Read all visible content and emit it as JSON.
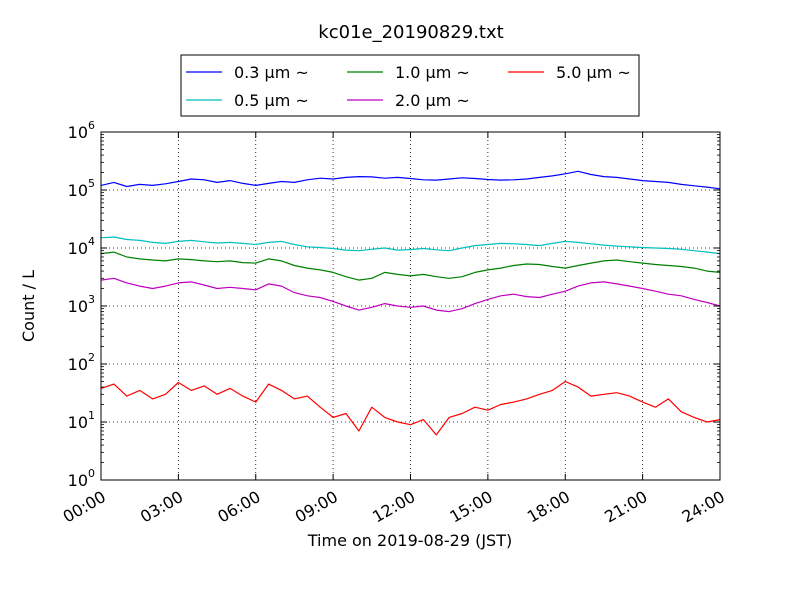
{
  "chart_data": {
    "type": "line",
    "title": "kc01e_20190829.txt",
    "xlabel": "Time on 2019-08-29 (JST)",
    "ylabel": "Count / L",
    "yscale": "log",
    "ylim": [
      1,
      1000000
    ],
    "xlim": [
      "00:00",
      "24:00"
    ],
    "x_ticks": [
      "00:00",
      "03:00",
      "06:00",
      "09:00",
      "12:00",
      "15:00",
      "18:00",
      "21:00",
      "24:00"
    ],
    "y_ticks": [
      {
        "base": "10",
        "exp": "0"
      },
      {
        "base": "10",
        "exp": "1"
      },
      {
        "base": "10",
        "exp": "2"
      },
      {
        "base": "10",
        "exp": "3"
      },
      {
        "base": "10",
        "exp": "4"
      },
      {
        "base": "10",
        "exp": "5"
      },
      {
        "base": "10",
        "exp": "6"
      }
    ],
    "grid": true,
    "legend_position": "top-center",
    "x_hours": [
      0,
      0.5,
      1,
      1.5,
      2,
      2.5,
      3,
      3.5,
      4,
      4.5,
      5,
      5.5,
      6,
      6.5,
      7,
      7.5,
      8,
      8.5,
      9,
      9.5,
      10,
      10.5,
      11,
      11.5,
      12,
      12.5,
      13,
      13.5,
      14,
      14.5,
      15,
      15.5,
      16,
      16.5,
      17,
      17.5,
      18,
      18.5,
      19,
      19.5,
      20,
      20.5,
      21,
      21.5,
      22,
      22.5,
      23,
      23.5,
      24
    ],
    "series": [
      {
        "name": "0.3 μm ~",
        "color": "#0000ff",
        "values": [
          120000,
          135000,
          115000,
          125000,
          120000,
          128000,
          140000,
          155000,
          150000,
          135000,
          145000,
          130000,
          120000,
          130000,
          140000,
          135000,
          150000,
          160000,
          155000,
          165000,
          170000,
          168000,
          160000,
          165000,
          158000,
          150000,
          148000,
          155000,
          162000,
          158000,
          152000,
          148000,
          150000,
          155000,
          165000,
          175000,
          190000,
          210000,
          185000,
          170000,
          165000,
          155000,
          145000,
          140000,
          135000,
          125000,
          118000,
          112000,
          105000
        ]
      },
      {
        "name": "0.5 μm ~",
        "color": "#00bfbf",
        "values": [
          15000,
          15500,
          14000,
          13500,
          12500,
          12000,
          13000,
          13500,
          12800,
          12200,
          12500,
          12000,
          11500,
          12500,
          13000,
          11500,
          10500,
          10200,
          9800,
          9200,
          9000,
          9500,
          10000,
          9200,
          9400,
          9800,
          9300,
          9000,
          10000,
          11000,
          11500,
          12000,
          11800,
          11500,
          11000,
          12000,
          13000,
          12500,
          11800,
          11200,
          10800,
          10500,
          10200,
          10000,
          9800,
          9500,
          9000,
          8500,
          8000
        ]
      },
      {
        "name": "1.0 μm ~",
        "color": "#008000",
        "values": [
          8000,
          8500,
          7000,
          6500,
          6200,
          6000,
          6500,
          6300,
          6000,
          5800,
          6000,
          5600,
          5500,
          6500,
          6000,
          5000,
          4500,
          4200,
          3800,
          3200,
          2800,
          3000,
          3800,
          3500,
          3300,
          3500,
          3200,
          3000,
          3200,
          3800,
          4200,
          4500,
          5000,
          5300,
          5200,
          4800,
          4500,
          5000,
          5500,
          6000,
          6200,
          5800,
          5500,
          5200,
          5000,
          4800,
          4500,
          4000,
          3800
        ]
      },
      {
        "name": "2.0 μm ~",
        "color": "#bf00bf",
        "values": [
          2800,
          3000,
          2500,
          2200,
          2000,
          2200,
          2500,
          2600,
          2300,
          2000,
          2100,
          2000,
          1900,
          2400,
          2200,
          1700,
          1500,
          1400,
          1200,
          1000,
          850,
          950,
          1100,
          1000,
          950,
          1000,
          850,
          800,
          900,
          1100,
          1300,
          1500,
          1600,
          1450,
          1400,
          1600,
          1800,
          2200,
          2500,
          2600,
          2400,
          2200,
          2000,
          1800,
          1600,
          1500,
          1300,
          1150,
          1000
        ]
      },
      {
        "name": "5.0 μm ~",
        "color": "#ff0000",
        "values": [
          38,
          45,
          28,
          35,
          25,
          30,
          48,
          35,
          42,
          30,
          38,
          28,
          22,
          45,
          35,
          25,
          28,
          18,
          12,
          14,
          7,
          18,
          12,
          10,
          9,
          11,
          6,
          12,
          14,
          18,
          16,
          20,
          22,
          25,
          30,
          35,
          50,
          40,
          28,
          30,
          32,
          28,
          22,
          18,
          25,
          15,
          12,
          10,
          11
        ]
      }
    ]
  }
}
